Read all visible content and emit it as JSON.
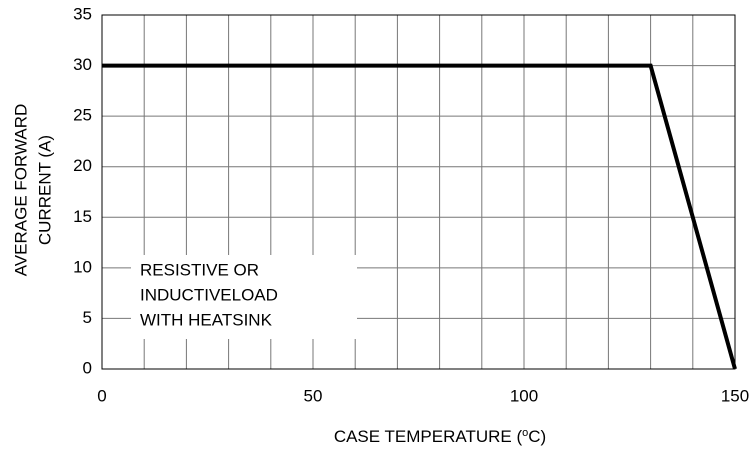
{
  "chart_data": {
    "type": "line",
    "xlabel": [
      "CASE TEMPERATURE (",
      "o",
      "C)"
    ],
    "ylabel": [
      "AVERAGE FORWARD",
      "CURRENT (A)"
    ],
    "annotation": [
      "RESISTIVE OR",
      "INDUCTIVELOAD",
      "WITH HEATSINK"
    ],
    "x": [
      0,
      130,
      150
    ],
    "series": [
      {
        "color": "#000000",
        "values": [
          30,
          30,
          0
        ]
      }
    ],
    "xlim": [
      0,
      150
    ],
    "xticks": [
      0,
      50,
      100,
      150
    ],
    "xgrid": [
      0,
      10,
      20,
      30,
      40,
      50,
      60,
      70,
      80,
      90,
      100,
      110,
      120,
      130,
      140,
      150
    ],
    "ylim": [
      0,
      35
    ],
    "yticks": [
      0,
      5,
      10,
      15,
      20,
      25,
      30,
      35
    ],
    "grid": true
  }
}
